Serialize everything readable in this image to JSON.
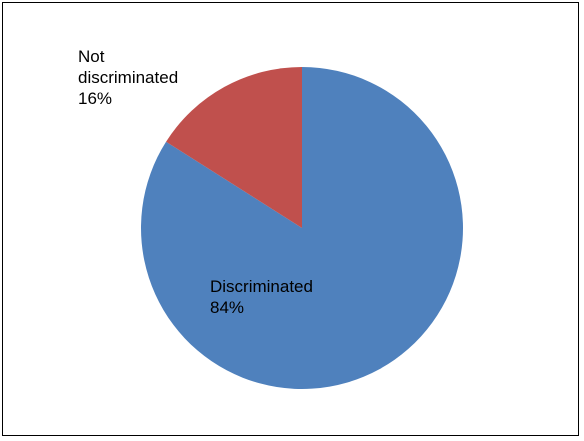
{
  "chart_data": {
    "type": "pie",
    "title": "",
    "legend": "none",
    "slices": [
      {
        "label_lines": [
          "Discriminated"
        ],
        "percent_text": "84%",
        "value": 84,
        "color": "#4F81BD"
      },
      {
        "label_lines": [
          "Not",
          "discriminated"
        ],
        "percent_text": "16%",
        "value": 16,
        "color": "#C0504D"
      }
    ]
  }
}
